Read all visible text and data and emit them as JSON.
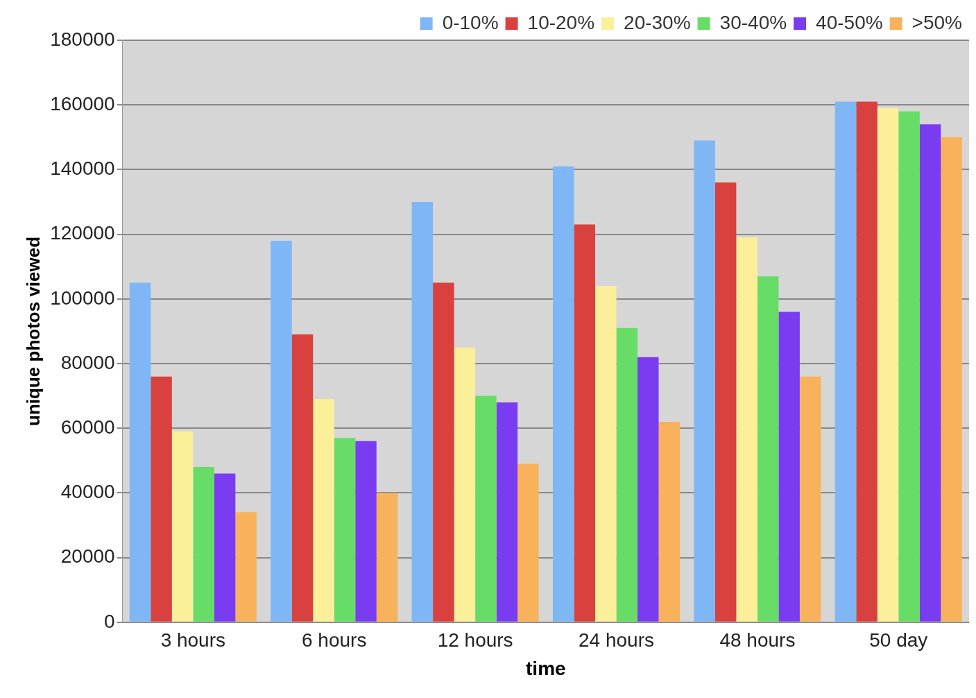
{
  "chart_data": {
    "type": "bar",
    "xlabel": "time",
    "ylabel": "unique photos viewed",
    "categories": [
      "3 hours",
      "6 hours",
      "12 hours",
      "24 hours",
      "48 hours",
      "50 day"
    ],
    "series": [
      {
        "name": "0-10%",
        "color": "#7fb6f5",
        "values": [
          105000,
          118000,
          130000,
          141000,
          149000,
          161000
        ]
      },
      {
        "name": "10-20%",
        "color": "#d9413f",
        "values": [
          76000,
          89000,
          105000,
          123000,
          136000,
          161000
        ]
      },
      {
        "name": "20-30%",
        "color": "#fbef9a",
        "values": [
          59000,
          69000,
          85000,
          104000,
          119000,
          159000
        ]
      },
      {
        "name": "30-40%",
        "color": "#67dc66",
        "values": [
          48000,
          57000,
          70000,
          91000,
          107000,
          158000
        ]
      },
      {
        "name": "40-50%",
        "color": "#7a3cf0",
        "values": [
          46000,
          56000,
          68000,
          82000,
          96000,
          154000
        ]
      },
      {
        "name": ">50%",
        "color": "#f8b25c",
        "values": [
          34000,
          40000,
          49000,
          62000,
          76000,
          150000
        ]
      }
    ],
    "ylim": [
      0,
      180000
    ],
    "yticks": [
      0,
      20000,
      40000,
      60000,
      80000,
      100000,
      120000,
      140000,
      160000,
      180000
    ],
    "grid": "y",
    "legend": "top"
  }
}
